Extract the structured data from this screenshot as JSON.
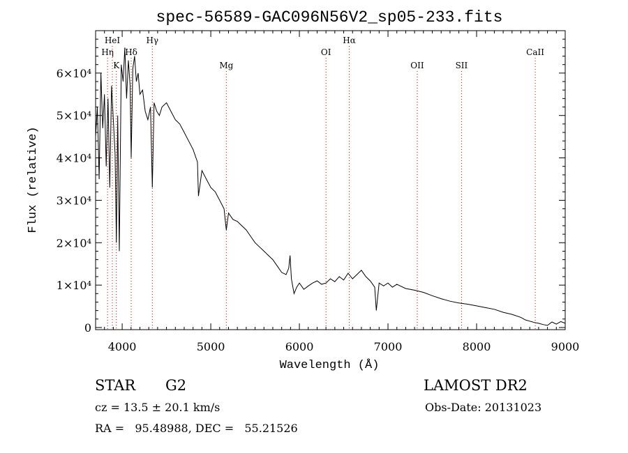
{
  "chart_data": {
    "type": "line",
    "title": "spec-56589-GAC096N56V2_sp05-233.fits",
    "xlabel": "Wavelength (Å)",
    "ylabel": "Flux (relative)",
    "xlim": [
      3700,
      9000
    ],
    "ylim": [
      -500,
      70000
    ],
    "x_ticks": [
      4000,
      5000,
      6000,
      7000,
      8000,
      9000
    ],
    "y_ticks": [
      {
        "value": 0,
        "label": "0"
      },
      {
        "value": 10000,
        "label": "1×10⁴"
      },
      {
        "value": 20000,
        "label": "2×10⁴"
      },
      {
        "value": 30000,
        "label": "3×10⁴"
      },
      {
        "value": 40000,
        "label": "4×10⁴"
      },
      {
        "value": 50000,
        "label": "5×10⁴"
      },
      {
        "value": 60000,
        "label": "6×10⁴"
      }
    ],
    "grid": false,
    "lines": [
      {
        "label": "Hη",
        "wavelength": 3835,
        "row": 2
      },
      {
        "label": "HeI",
        "wavelength": 3889,
        "row": 1
      },
      {
        "label": "K",
        "wavelength": 3934,
        "row": 3
      },
      {
        "label": "Hδ",
        "wavelength": 4102,
        "row": 2
      },
      {
        "label": "Hγ",
        "wavelength": 4340,
        "row": 1
      },
      {
        "label": "Mg",
        "wavelength": 5175,
        "row": 3
      },
      {
        "label": "OI",
        "wavelength": 6300,
        "row": 2
      },
      {
        "label": "Hα",
        "wavelength": 6563,
        "row": 1
      },
      {
        "label": "OII",
        "wavelength": 7330,
        "row": 3
      },
      {
        "label": "SII",
        "wavelength": 7830,
        "row": 3
      },
      {
        "label": "CaII",
        "wavelength": 8662,
        "row": 2
      }
    ],
    "series": [
      {
        "x": [
          3700,
          3720,
          3740,
          3760,
          3780,
          3800,
          3820,
          3840,
          3860,
          3880,
          3900,
          3920,
          3935,
          3950,
          3968,
          3990,
          4010,
          4030,
          4050,
          4070,
          4090,
          4102,
          4120,
          4140,
          4160,
          4180,
          4200,
          4230,
          4260,
          4290,
          4320,
          4340,
          4360,
          4390,
          4420,
          4450,
          4500,
          4550,
          4600,
          4650,
          4700,
          4750,
          4800,
          4850,
          4861,
          4900,
          4950,
          5000,
          5050,
          5100,
          5150,
          5175,
          5200,
          5250,
          5300,
          5350,
          5400,
          5450,
          5500,
          5550,
          5600,
          5650,
          5700,
          5750,
          5800,
          5850,
          5880,
          5895,
          5910,
          5940,
          5970,
          6000,
          6050,
          6100,
          6150,
          6200,
          6250,
          6300,
          6350,
          6400,
          6450,
          6500,
          6550,
          6600,
          6650,
          6700,
          6750,
          6800,
          6850,
          6868,
          6900,
          6950,
          7000,
          7050,
          7100,
          7200,
          7300,
          7400,
          7500,
          7600,
          7700,
          7800,
          7900,
          8000,
          8100,
          8200,
          8300,
          8400,
          8500,
          8550,
          8600,
          8650,
          8700,
          8750,
          8800,
          8850,
          8900,
          8950,
          9000
        ],
        "y": [
          45000,
          52000,
          35000,
          60000,
          47000,
          55000,
          38000,
          54000,
          33000,
          57000,
          49000,
          41000,
          20000,
          50000,
          18000,
          62000,
          58000,
          66000,
          54000,
          63000,
          57000,
          40000,
          61000,
          64000,
          58000,
          60000,
          55000,
          56000,
          51000,
          49000,
          52000,
          33000,
          53000,
          51000,
          50000,
          52000,
          53000,
          51000,
          49000,
          48000,
          46000,
          44000,
          42000,
          39000,
          31000,
          37000,
          35000,
          33000,
          32000,
          30000,
          28000,
          23000,
          27000,
          25500,
          25000,
          24000,
          23000,
          21500,
          20000,
          19000,
          18000,
          17000,
          16000,
          14500,
          13000,
          12500,
          14000,
          17000,
          11500,
          8000,
          9500,
          10500,
          9000,
          9800,
          10500,
          11000,
          10200,
          10500,
          11500,
          10800,
          12000,
          11200,
          12800,
          11500,
          12500,
          13500,
          12000,
          11000,
          9500,
          4000,
          10500,
          9800,
          10500,
          9500,
          10200,
          9200,
          8800,
          8300,
          7500,
          6800,
          6200,
          5800,
          5500,
          5100,
          4700,
          4300,
          3600,
          3100,
          2400,
          1800,
          1500,
          1200,
          1000,
          700,
          500,
          1300,
          800,
          1400,
          1000
        ]
      }
    ]
  },
  "footer": {
    "object": "STAR",
    "subclass": "G2",
    "survey": "LAMOST DR2",
    "redshift": "cz = 13.5 ± 20.1 km/s",
    "obs_date": "Obs-Date: 20131023",
    "coords": "RA =   95.48988, DEC =   55.21526"
  }
}
